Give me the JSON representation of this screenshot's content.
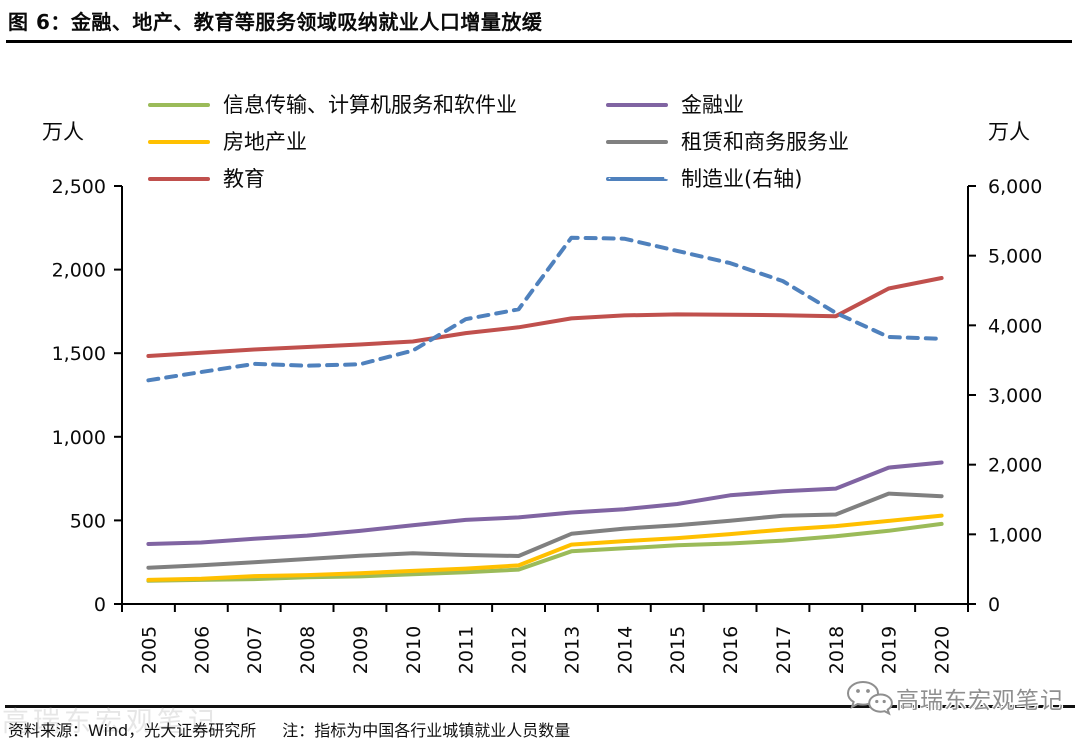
{
  "header": {
    "title": "图 6：金融、地产、教育等服务领域吸纳就业人口增量放缓"
  },
  "chart_data": {
    "type": "line",
    "x": [
      "2005",
      "2006",
      "2007",
      "2008",
      "2009",
      "2010",
      "2011",
      "2012",
      "2013",
      "2014",
      "2015",
      "2016",
      "2017",
      "2018",
      "2019",
      "2020"
    ],
    "left_axis": {
      "unit": "万人",
      "max": 2500,
      "ticks": [
        {
          "value": 0,
          "label": "0"
        },
        {
          "value": 500,
          "label": "500"
        },
        {
          "value": 1000,
          "label": "1,000"
        },
        {
          "value": 1500,
          "label": "1,500"
        },
        {
          "value": 2000,
          "label": "2,000"
        },
        {
          "value": 2500,
          "label": "2,500"
        }
      ]
    },
    "right_axis": {
      "unit": "万人",
      "max": 6000,
      "ticks": [
        {
          "value": 0,
          "label": "0"
        },
        {
          "value": 1000,
          "label": "1,000"
        },
        {
          "value": 2000,
          "label": "2,000"
        },
        {
          "value": 3000,
          "label": "3,000"
        },
        {
          "value": 4000,
          "label": "4,000"
        },
        {
          "value": 5000,
          "label": "5,000"
        },
        {
          "value": 6000,
          "label": "6,000"
        }
      ]
    },
    "series": [
      {
        "name": "信息传输、计算机服务和软件业",
        "color": "#9BBB59",
        "axis": "left",
        "dashed": false,
        "values": [
          139,
          144,
          149,
          160,
          165,
          178,
          190,
          206,
          315,
          333,
          351,
          362,
          379,
          405,
          438,
          479
        ]
      },
      {
        "name": "房地产业",
        "color": "#FFC000",
        "axis": "left",
        "dashed": false,
        "values": [
          144,
          151,
          167,
          173,
          184,
          198,
          212,
          231,
          355,
          376,
          394,
          418,
          445,
          466,
          497,
          529
        ]
      },
      {
        "name": "教育",
        "color": "#C0504D",
        "axis": "left",
        "dashed": false,
        "values": [
          1483,
          1503,
          1522,
          1537,
          1552,
          1570,
          1620,
          1655,
          1708,
          1726,
          1732,
          1730,
          1727,
          1721,
          1887,
          1950
        ]
      },
      {
        "name": "金融业",
        "color": "#8064A2",
        "axis": "left",
        "dashed": false,
        "values": [
          359,
          368,
          390,
          409,
          437,
          471,
          503,
          518,
          547,
          567,
          598,
          650,
          674,
          690,
          816,
          846
        ]
      },
      {
        "name": "租赁和商务服务业",
        "color": "#808080",
        "axis": "left",
        "dashed": false,
        "values": [
          217,
          232,
          250,
          269,
          288,
          304,
          293,
          287,
          420,
          451,
          471,
          498,
          528,
          535,
          660,
          645
        ]
      },
      {
        "name": "制造业(右轴)",
        "color": "#4F81BD",
        "axis": "right",
        "dashed": true,
        "values": [
          3211,
          3330,
          3447,
          3420,
          3440,
          3637,
          4088,
          4230,
          5258,
          5243,
          5069,
          4894,
          4635,
          4178,
          3832,
          3806
        ]
      }
    ],
    "ylim_left": [
      0,
      2500
    ],
    "ylim_right": [
      0,
      6000
    ],
    "legend_position": "top",
    "grid": false
  },
  "footer": {
    "source": "资料来源：Wind，光大证券研究所",
    "note": "注：指标为中国各行业城镇就业人员数量",
    "watermark": "高瑞东宏观笔记"
  }
}
